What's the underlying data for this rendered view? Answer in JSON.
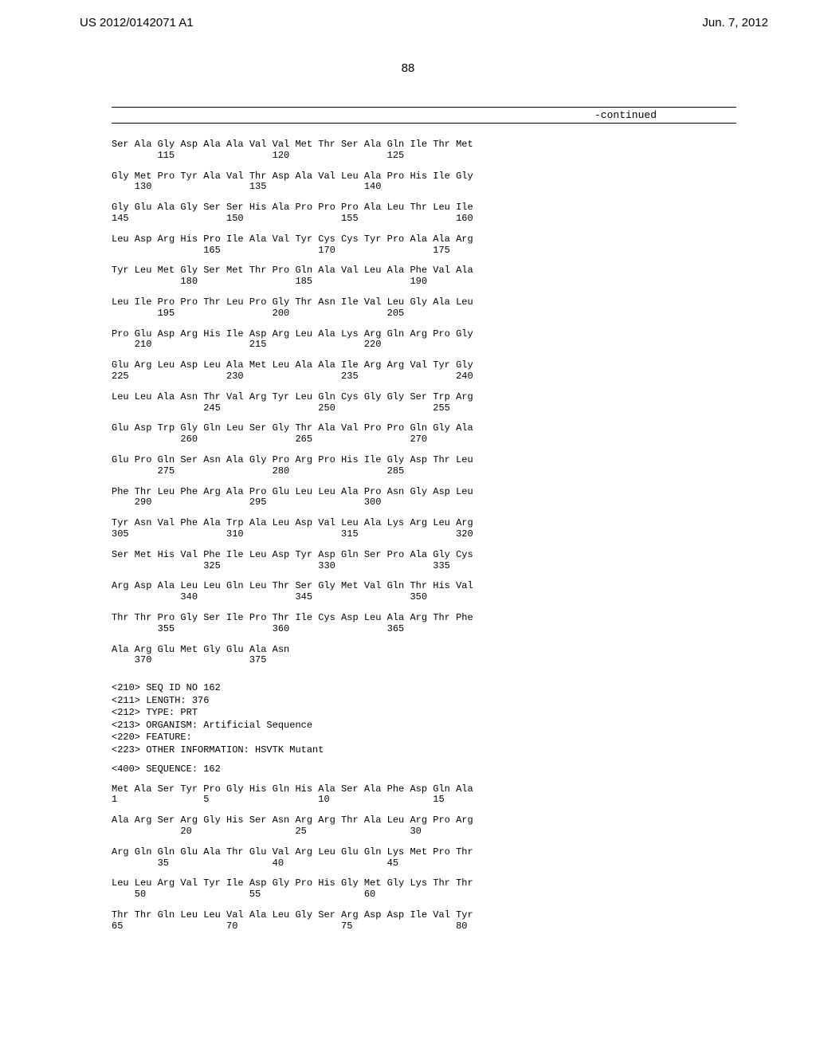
{
  "header": {
    "patent_number": "US 2012/0142071 A1",
    "date": "Jun. 7, 2012"
  },
  "page_number": "88",
  "continued_label": "-continued",
  "sequence_rows": [
    {
      "line1": "Ser Ala Gly Asp Ala Ala Val Val Met Thr Ser Ala Gln Ile Thr Met",
      "line2": "        115                 120                 125"
    },
    {
      "line1": "Gly Met Pro Tyr Ala Val Thr Asp Ala Val Leu Ala Pro His Ile Gly",
      "line2": "    130                 135                 140"
    },
    {
      "line1": "Gly Glu Ala Gly Ser Ser His Ala Pro Pro Pro Ala Leu Thr Leu Ile",
      "line2": "145                 150                 155                 160"
    },
    {
      "line1": "Leu Asp Arg His Pro Ile Ala Val Tyr Cys Cys Tyr Pro Ala Ala Arg",
      "line2": "                165                 170                 175"
    },
    {
      "line1": "Tyr Leu Met Gly Ser Met Thr Pro Gln Ala Val Leu Ala Phe Val Ala",
      "line2": "            180                 185                 190"
    },
    {
      "line1": "Leu Ile Pro Pro Thr Leu Pro Gly Thr Asn Ile Val Leu Gly Ala Leu",
      "line2": "        195                 200                 205"
    },
    {
      "line1": "Pro Glu Asp Arg His Ile Asp Arg Leu Ala Lys Arg Gln Arg Pro Gly",
      "line2": "    210                 215                 220"
    },
    {
      "line1": "Glu Arg Leu Asp Leu Ala Met Leu Ala Ala Ile Arg Arg Val Tyr Gly",
      "line2": "225                 230                 235                 240"
    },
    {
      "line1": "Leu Leu Ala Asn Thr Val Arg Tyr Leu Gln Cys Gly Gly Ser Trp Arg",
      "line2": "                245                 250                 255"
    },
    {
      "line1": "Glu Asp Trp Gly Gln Leu Ser Gly Thr Ala Val Pro Pro Gln Gly Ala",
      "line2": "            260                 265                 270"
    },
    {
      "line1": "Glu Pro Gln Ser Asn Ala Gly Pro Arg Pro His Ile Gly Asp Thr Leu",
      "line2": "        275                 280                 285"
    },
    {
      "line1": "Phe Thr Leu Phe Arg Ala Pro Glu Leu Leu Ala Pro Asn Gly Asp Leu",
      "line2": "    290                 295                 300"
    },
    {
      "line1": "Tyr Asn Val Phe Ala Trp Ala Leu Asp Val Leu Ala Lys Arg Leu Arg",
      "line2": "305                 310                 315                 320"
    },
    {
      "line1": "Ser Met His Val Phe Ile Leu Asp Tyr Asp Gln Ser Pro Ala Gly Cys",
      "line2": "                325                 330                 335"
    },
    {
      "line1": "Arg Asp Ala Leu Leu Gln Leu Thr Ser Gly Met Val Gln Thr His Val",
      "line2": "            340                 345                 350"
    },
    {
      "line1": "Thr Thr Pro Gly Ser Ile Pro Thr Ile Cys Asp Leu Ala Arg Thr Phe",
      "line2": "        355                 360                 365"
    },
    {
      "line1": "Ala Arg Glu Met Gly Glu Ala Asn",
      "line2": "    370                 375"
    }
  ],
  "metadata": {
    "seq_id": "<210> SEQ ID NO 162",
    "length": "<211> LENGTH: 376",
    "type": "<212> TYPE: PRT",
    "organism": "<213> ORGANISM: Artificial Sequence",
    "feature": "<220> FEATURE:",
    "other_info": "<223> OTHER INFORMATION: HSVTK Mutant"
  },
  "sequence_label": "<400> SEQUENCE: 162",
  "sequence_rows_2": [
    {
      "line1": "Met Ala Ser Tyr Pro Gly His Gln His Ala Ser Ala Phe Asp Gln Ala",
      "line2": "1               5                   10                  15"
    },
    {
      "line1": "Ala Arg Ser Arg Gly His Ser Asn Arg Arg Thr Ala Leu Arg Pro Arg",
      "line2": "            20                  25                  30"
    },
    {
      "line1": "Arg Gln Gln Glu Ala Thr Glu Val Arg Leu Glu Gln Lys Met Pro Thr",
      "line2": "        35                  40                  45"
    },
    {
      "line1": "Leu Leu Arg Val Tyr Ile Asp Gly Pro His Gly Met Gly Lys Thr Thr",
      "line2": "    50                  55                  60"
    },
    {
      "line1": "Thr Thr Gln Leu Leu Val Ala Leu Gly Ser Arg Asp Asp Ile Val Tyr",
      "line2": "65                  70                  75                  80"
    }
  ]
}
